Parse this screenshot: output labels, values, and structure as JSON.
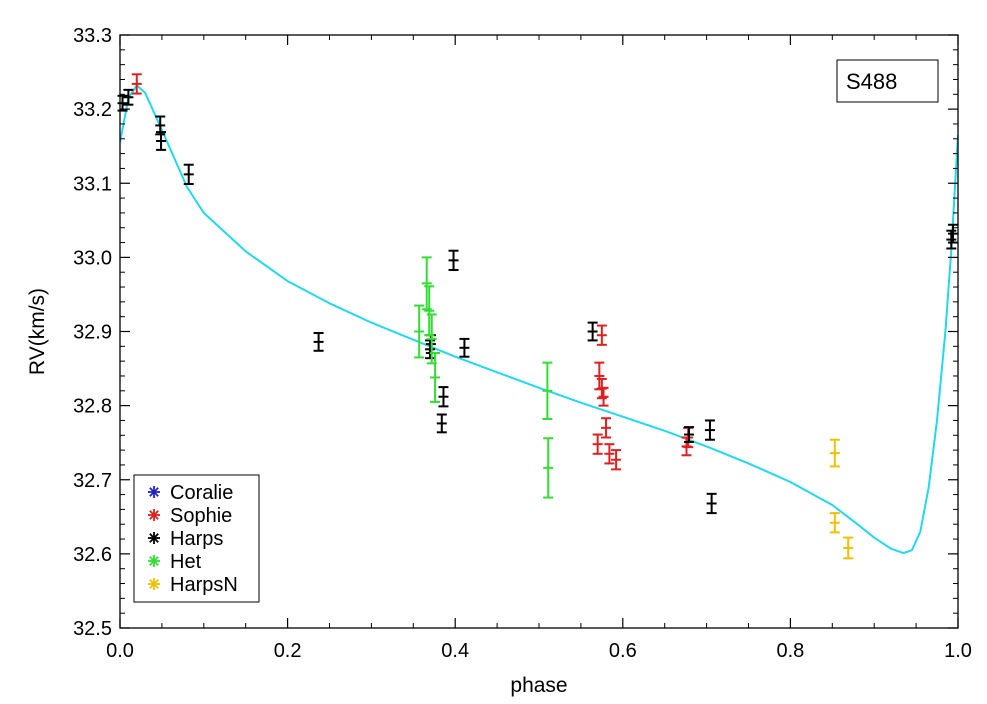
{
  "chart_data": {
    "type": "scatter",
    "title": "",
    "label_box": "S488",
    "xlabel": "phase",
    "ylabel": "RV(km/s)",
    "xlim": [
      0.0,
      1.0
    ],
    "ylim": [
      32.5,
      33.3
    ],
    "xticks": [
      0.0,
      0.2,
      0.4,
      0.6,
      0.8,
      1.0
    ],
    "xtick_labels": [
      "0.0",
      "0.2",
      "0.4",
      "0.6",
      "0.8",
      "1.0"
    ],
    "yticks": [
      32.5,
      32.6,
      32.7,
      32.8,
      32.9,
      33.0,
      33.1,
      33.2,
      33.3
    ],
    "ytick_labels": [
      "32.5",
      "32.6",
      "32.7",
      "32.8",
      "32.9",
      "33.0",
      "33.1",
      "33.2",
      "33.3"
    ],
    "grid": false,
    "legend_position": "bottom-left",
    "legend": [
      {
        "name": "Coralie",
        "color": "#2222cc"
      },
      {
        "name": "Sophie",
        "color": "#e02020"
      },
      {
        "name": "Harps",
        "color": "#000000"
      },
      {
        "name": "Het",
        "color": "#33dd33"
      },
      {
        "name": "HarpsN",
        "color": "#f0c000"
      }
    ],
    "series": [
      {
        "name": "Sophie",
        "color": "#e02020",
        "points": [
          {
            "x": 0.02,
            "y": 33.234,
            "err": 0.013
          },
          {
            "x": 0.57,
            "y": 32.748,
            "err": 0.013
          },
          {
            "x": 0.572,
            "y": 32.84,
            "err": 0.018
          },
          {
            "x": 0.575,
            "y": 32.895,
            "err": 0.013
          },
          {
            "x": 0.575,
            "y": 32.823,
            "err": 0.013
          },
          {
            "x": 0.577,
            "y": 32.812,
            "err": 0.012
          },
          {
            "x": 0.58,
            "y": 32.77,
            "err": 0.013
          },
          {
            "x": 0.584,
            "y": 32.735,
            "err": 0.013
          },
          {
            "x": 0.592,
            "y": 32.727,
            "err": 0.013
          },
          {
            "x": 0.676,
            "y": 32.745,
            "err": 0.012
          },
          {
            "x": 0.678,
            "y": 32.757,
            "err": 0.013
          }
        ]
      },
      {
        "name": "Harps",
        "color": "#000000",
        "points": [
          {
            "x": 0.003,
            "y": 33.208,
            "err": 0.01
          },
          {
            "x": 0.01,
            "y": 33.216,
            "err": 0.01
          },
          {
            "x": 0.048,
            "y": 33.178,
            "err": 0.012
          },
          {
            "x": 0.049,
            "y": 33.157,
            "err": 0.012
          },
          {
            "x": 0.082,
            "y": 33.112,
            "err": 0.013
          },
          {
            "x": 0.237,
            "y": 32.886,
            "err": 0.012
          },
          {
            "x": 0.37,
            "y": 32.876,
            "err": 0.012
          },
          {
            "x": 0.371,
            "y": 32.883,
            "err": 0.012
          },
          {
            "x": 0.384,
            "y": 32.776,
            "err": 0.012
          },
          {
            "x": 0.386,
            "y": 32.812,
            "err": 0.013
          },
          {
            "x": 0.398,
            "y": 32.996,
            "err": 0.013
          },
          {
            "x": 0.411,
            "y": 32.878,
            "err": 0.012
          },
          {
            "x": 0.564,
            "y": 32.9,
            "err": 0.012
          },
          {
            "x": 0.679,
            "y": 32.761,
            "err": 0.01
          },
          {
            "x": 0.704,
            "y": 32.767,
            "err": 0.013
          },
          {
            "x": 0.706,
            "y": 32.668,
            "err": 0.013
          },
          {
            "x": 0.992,
            "y": 33.024,
            "err": 0.012
          },
          {
            "x": 0.994,
            "y": 33.032,
            "err": 0.012
          }
        ]
      },
      {
        "name": "Het",
        "color": "#33dd33",
        "points": [
          {
            "x": 0.357,
            "y": 32.9,
            "err": 0.035
          },
          {
            "x": 0.366,
            "y": 32.965,
            "err": 0.035
          },
          {
            "x": 0.369,
            "y": 32.928,
            "err": 0.033
          },
          {
            "x": 0.372,
            "y": 32.89,
            "err": 0.033
          },
          {
            "x": 0.376,
            "y": 32.838,
            "err": 0.033
          },
          {
            "x": 0.51,
            "y": 32.82,
            "err": 0.038
          },
          {
            "x": 0.511,
            "y": 32.716,
            "err": 0.04
          }
        ]
      },
      {
        "name": "HarpsN",
        "color": "#f0c000",
        "points": [
          {
            "x": 0.853,
            "y": 32.736,
            "err": 0.018
          },
          {
            "x": 0.853,
            "y": 32.642,
            "err": 0.013
          },
          {
            "x": 0.869,
            "y": 32.608,
            "err": 0.014
          }
        ]
      }
    ],
    "model_curve": {
      "name": "fit",
      "color": "#22d8ee",
      "x": [
        0.0,
        0.01,
        0.02,
        0.03,
        0.05,
        0.08,
        0.1,
        0.15,
        0.2,
        0.25,
        0.3,
        0.35,
        0.4,
        0.45,
        0.5,
        0.55,
        0.6,
        0.65,
        0.7,
        0.75,
        0.8,
        0.85,
        0.88,
        0.9,
        0.92,
        0.935,
        0.945,
        0.955,
        0.965,
        0.975,
        0.985,
        0.992,
        1.0
      ],
      "y": [
        33.155,
        33.215,
        33.232,
        33.222,
        33.172,
        33.095,
        33.06,
        33.008,
        32.968,
        32.938,
        32.912,
        32.889,
        32.866,
        32.845,
        32.824,
        32.804,
        32.785,
        32.766,
        32.745,
        32.722,
        32.697,
        32.666,
        32.64,
        32.622,
        32.607,
        32.601,
        32.605,
        32.63,
        32.69,
        32.78,
        32.9,
        33.01,
        33.165
      ]
    }
  }
}
